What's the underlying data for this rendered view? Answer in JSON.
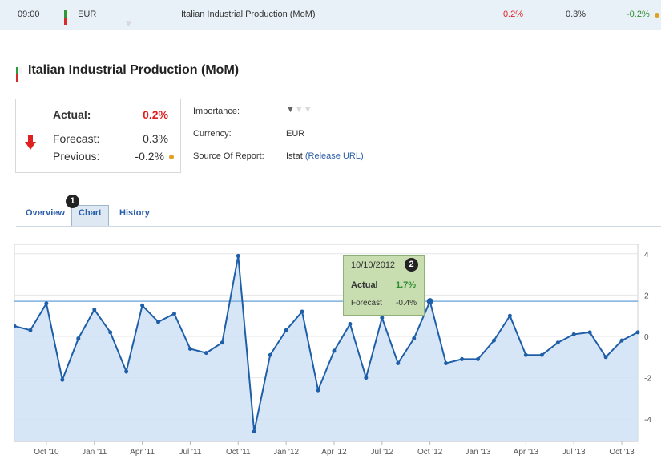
{
  "top_row": {
    "time": "09:00",
    "currency": "EUR",
    "event": "Italian Industrial Production (MoM)",
    "actual": "0.2%",
    "forecast": "0.3%",
    "previous": "-0.2%"
  },
  "title": "Italian Industrial Production (MoM)",
  "summary": {
    "actual_label": "Actual:",
    "actual_value": "0.2%",
    "forecast_label": "Forecast:",
    "forecast_value": "0.3%",
    "previous_label": "Previous:",
    "previous_value": "-0.2%"
  },
  "meta": {
    "importance_label": "Importance:",
    "currency_label": "Currency:",
    "currency_value": "EUR",
    "source_label": "Source Of Report:",
    "source_value": "Istat",
    "source_link_open": "(",
    "source_link": "Release URL",
    "source_link_close": ")"
  },
  "tabs": [
    {
      "label": "Overview"
    },
    {
      "label": "Chart"
    },
    {
      "label": "History"
    }
  ],
  "badges": {
    "tab_marker": "1",
    "tooltip_marker": "2"
  },
  "tooltip": {
    "date": "10/10/2012",
    "actual_label": "Actual",
    "actual_value": "1.7%",
    "forecast_label": "Forecast",
    "forecast_value": "-0.4%"
  },
  "colors": {
    "accent_blue": "#2a5ea8",
    "line": "#1f5fa8",
    "area": "#cfe2f6",
    "actual_red": "#e02020",
    "previous_green": "#2e8b2e",
    "tooltip_bg": "#c8ddb0"
  },
  "icons": [
    "italy-flag-icon",
    "bull-importance-icon",
    "down-arrow-icon",
    "revision-dot-icon"
  ],
  "chart_data": {
    "type": "area",
    "title": "",
    "xlabel": "",
    "ylabel": "",
    "ylim": [
      -5,
      4.5
    ],
    "yticks": [
      4,
      2,
      0,
      -2,
      -4
    ],
    "xtick_labels": [
      "Oct '10",
      "Jan '11",
      "Apr '11",
      "Jul '11",
      "Oct '11",
      "Jan '12",
      "Apr '12",
      "Jul '12",
      "Oct '12",
      "Jan '13",
      "Apr '13",
      "Jul '13",
      "Oct '13"
    ],
    "xtick_index": [
      2,
      5,
      8,
      11,
      14,
      17,
      20,
      23,
      26,
      29,
      32,
      35,
      38
    ],
    "reference_line": 1.7,
    "highlight_index": 26,
    "values": [
      0.5,
      0.3,
      1.6,
      -2.1,
      -0.1,
      1.3,
      0.2,
      -1.7,
      1.5,
      0.7,
      1.1,
      -0.6,
      -0.8,
      -0.3,
      3.9,
      -4.6,
      -0.9,
      0.3,
      1.2,
      -2.6,
      -0.7,
      0.6,
      -2.0,
      0.9,
      -1.3,
      -0.1,
      1.7,
      -1.3,
      -1.1,
      -1.1,
      -0.2,
      1.0,
      -0.9,
      -0.9,
      -0.3,
      0.1,
      0.2,
      -1.0,
      -0.2,
      0.2
    ]
  }
}
